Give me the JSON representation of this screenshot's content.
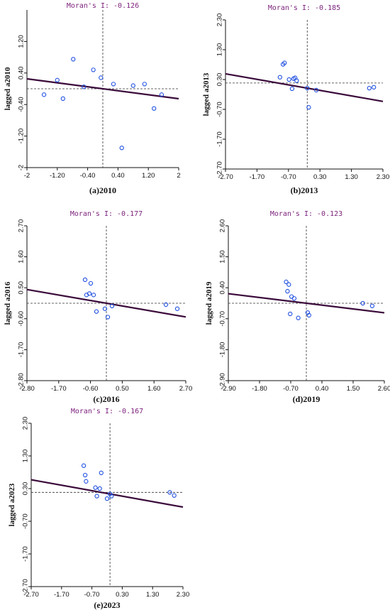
{
  "chart_data": [
    {
      "type": "scatter",
      "title": "Moran's I: -0.126",
      "ylabel": "lagged a2010",
      "caption": "(a)2010",
      "xlim": [
        -2,
        2
      ],
      "ylim": [
        -2,
        2
      ],
      "xticks": [
        "-2",
        "-1.20",
        "-0.40",
        "0.40",
        "1.20",
        "2"
      ],
      "yticks": [
        "-2",
        "-1.20",
        "-0.40",
        "0.40",
        "1.20"
      ],
      "x": [
        -1.55,
        -1.2,
        -1.05,
        -0.78,
        -0.5,
        -0.25,
        -0.05,
        0.28,
        0.5,
        0.8,
        1.1,
        1.35,
        1.55
      ],
      "y": [
        -0.15,
        0.22,
        -0.25,
        0.75,
        0.05,
        0.48,
        0.28,
        0.12,
        -1.5,
        0.08,
        0.12,
        -0.5,
        -0.15
      ],
      "fit": {
        "intercept": 0.0,
        "slope": -0.126
      },
      "ref_x": 0.0,
      "ref_y": 0.0
    },
    {
      "type": "scatter",
      "title": "Moran's I: -0.185",
      "ylabel": "lagged a2013",
      "caption": "(b)2013",
      "xlim": [
        -2.7,
        2.5
      ],
      "ylim": [
        -2.7,
        2.5
      ],
      "xticks": [
        "-2.70",
        "-1.70",
        "-0.70",
        "0.30",
        "1.30",
        "2.30"
      ],
      "yticks": [
        "-2.70",
        "-1.70",
        "-0.70",
        "0.30",
        "1.30",
        "2.30"
      ],
      "x": [
        -0.9,
        -0.8,
        -0.75,
        -0.6,
        -0.5,
        -0.45,
        -0.4,
        -0.35,
        0.0,
        0.05,
        0.3,
        2.05,
        2.2
      ],
      "y": [
        0.5,
        0.95,
        1.0,
        0.42,
        0.1,
        0.45,
        0.48,
        0.38,
        0.12,
        -0.55,
        0.05,
        0.12,
        0.15
      ],
      "fit": {
        "intercept": 0.12,
        "slope": -0.185
      },
      "ref_x": 0.0,
      "ref_y": 0.3
    },
    {
      "type": "scatter",
      "title": "Moran's I: -0.177",
      "ylabel": "lagged a2016",
      "caption": "(c)2016",
      "xlim": [
        -2.8,
        2.8
      ],
      "ylim": [
        -2.8,
        2.8
      ],
      "xticks": [
        "-2.80",
        "-1.70",
        "-0.60",
        "0.50",
        "1.60",
        "2.70"
      ],
      "yticks": [
        "-2.80",
        "-1.70",
        "-0.60",
        "0.50",
        "1.60",
        "2.70"
      ],
      "x": [
        -0.75,
        -0.7,
        -0.6,
        -0.55,
        -0.45,
        -0.35,
        -0.05,
        0.05,
        0.2,
        2.1,
        2.5
      ],
      "y": [
        0.85,
        0.3,
        0.35,
        0.72,
        0.3,
        -0.3,
        -0.2,
        -0.5,
        -0.1,
        -0.05,
        -0.2
      ],
      "fit": {
        "intercept": 0.0,
        "slope": -0.177
      },
      "ref_x": 0.0,
      "ref_y": 0.0
    },
    {
      "type": "scatter",
      "title": "Moran's I: -0.123",
      "ylabel": "lagged a2019",
      "caption": "(d)2019",
      "xlim": [
        -2.9,
        2.9
      ],
      "ylim": [
        -2.9,
        2.9
      ],
      "xticks": [
        "-2.90",
        "-1.80",
        "-0.70",
        "0.40",
        "1.50",
        "2.60"
      ],
      "yticks": [
        "-2.90",
        "-1.80",
        "-0.70",
        "0.40",
        "1.50",
        "2.60"
      ],
      "x": [
        -0.75,
        -0.7,
        -0.65,
        -0.6,
        -0.55,
        -0.45,
        -0.3,
        0.05,
        0.1,
        2.1,
        2.45
      ],
      "y": [
        0.8,
        0.45,
        0.7,
        -0.4,
        0.25,
        0.18,
        -0.55,
        -0.35,
        -0.45,
        0.0,
        -0.1
      ],
      "fit": {
        "intercept": 0.0,
        "slope": -0.123
      },
      "ref_x": 0.0,
      "ref_y": 0.0
    },
    {
      "type": "scatter",
      "title": "Moran's I: -0.167",
      "ylabel": "lagged a2023",
      "caption": "(e)2023",
      "xlim": [
        -2.7,
        2.5
      ],
      "ylim": [
        -2.7,
        2.5
      ],
      "xticks": [
        "-2.70",
        "-1.70",
        "-0.70",
        "0.30",
        "1.30",
        "2.30"
      ],
      "yticks": [
        "-2.70",
        "-1.70",
        "-0.70",
        "0.30",
        "1.30",
        "2.30"
      ],
      "x": [
        -0.9,
        -0.85,
        -0.82,
        -0.5,
        -0.45,
        -0.35,
        -0.3,
        -0.1,
        0.0,
        0.05,
        2.05,
        2.2
      ],
      "y": [
        1.15,
        0.85,
        0.65,
        0.45,
        0.18,
        0.42,
        0.92,
        0.1,
        0.25,
        0.18,
        0.3,
        0.2
      ],
      "fit": {
        "intercept": 0.25,
        "slope": -0.167
      },
      "ref_x": 0.0,
      "ref_y": 0.3
    }
  ]
}
